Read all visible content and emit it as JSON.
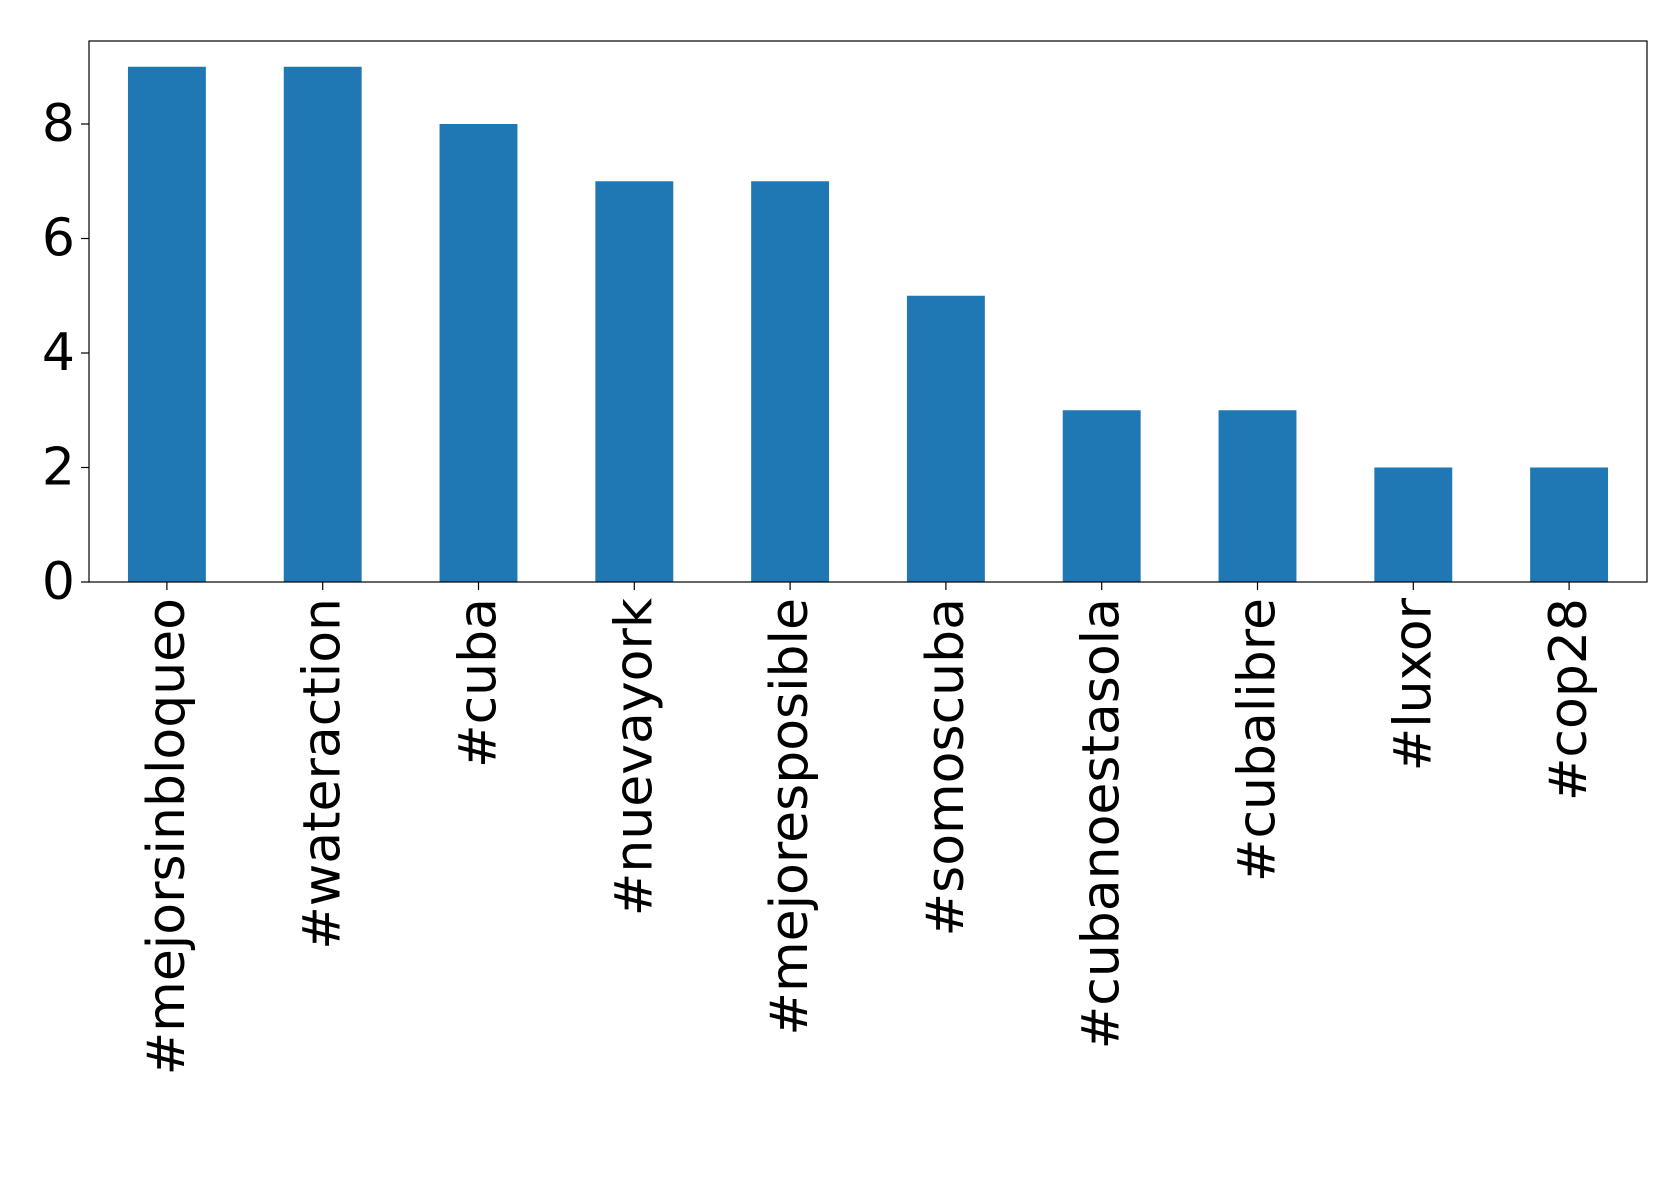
{
  "chart_data": {
    "type": "bar",
    "categories": [
      "#mejorsinbloqueo",
      "#wateraction",
      "#cuba",
      "#nuevayork",
      "#mejoresposible",
      "#somoscuba",
      "#cubanoestasola",
      "#cubalibre",
      "#luxor",
      "#cop28"
    ],
    "values": [
      9,
      9,
      8,
      7,
      7,
      5,
      3,
      3,
      2,
      2
    ],
    "color": "#1f77b4",
    "ylim": [
      0,
      9.45
    ],
    "yticks": [
      0,
      2,
      4,
      6,
      8
    ],
    "grid": false
  }
}
